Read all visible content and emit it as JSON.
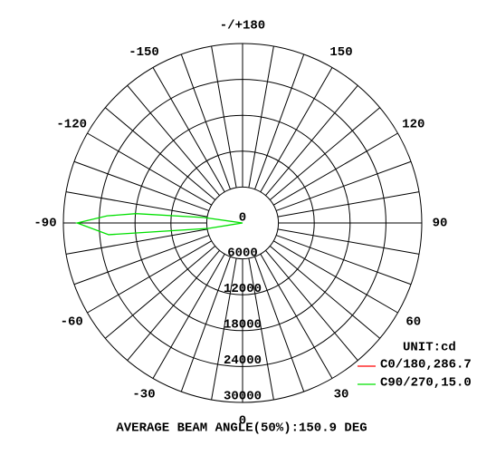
{
  "chart_data": {
    "type": "polar",
    "thetaticks": [
      {
        "value": 180,
        "label": "-/+180"
      },
      150,
      120,
      90,
      60,
      30,
      0,
      -30,
      -60,
      -90,
      -120,
      -150
    ],
    "rlim": [
      0,
      30000
    ],
    "rticks": [
      0,
      6000,
      12000,
      18000,
      24000,
      30000
    ],
    "unit": "UNIT:cd",
    "series": [
      {
        "name": "C0/180,286.7",
        "color": "#ff0000",
        "x": [
          0,
          90,
          180,
          -90
        ],
        "values": [
          0,
          0,
          0,
          0
        ]
      },
      {
        "name": "C90/270,15.0",
        "color": "#00e000",
        "x": [
          -99,
          -98,
          -95,
          -93,
          -90,
          -85,
          -81,
          -78
        ],
        "values": [
          0,
          6500,
          17900,
          22700,
          27700,
          22500,
          5800,
          0
        ]
      }
    ],
    "footer": "AVERAGE BEAM ANGLE(50%):150.9 DEG"
  }
}
